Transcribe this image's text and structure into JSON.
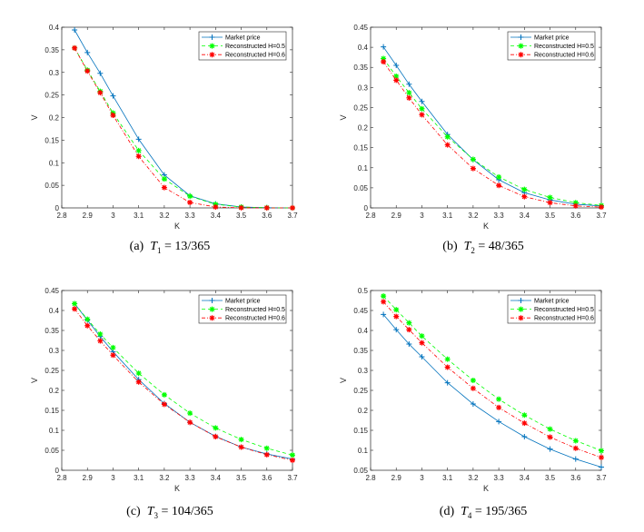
{
  "colors": {
    "market": "#0072BD",
    "h05": "#00FF00",
    "h06": "#FF0000",
    "axis": "#262626"
  },
  "chart_data": [
    {
      "type": "line",
      "panel": "a",
      "caption": {
        "label": "(a)",
        "var": "T",
        "sub": "1",
        "rest": "= 13/365"
      },
      "xlabel": "K",
      "ylabel": "V",
      "xlim": [
        2.8,
        3.7
      ],
      "ylim": [
        0,
        0.4
      ],
      "xticks": [
        "2.8",
        "2.9",
        "3",
        "3.1",
        "3.2",
        "3.3",
        "3.4",
        "3.5",
        "3.6",
        "3.7"
      ],
      "yticks": [
        "0",
        "0.05",
        "0.1",
        "0.15",
        "0.2",
        "0.25",
        "0.3",
        "0.35",
        "0.4"
      ],
      "legend_position": "top-right",
      "x": [
        2.85,
        2.9,
        2.95,
        3.0,
        3.1,
        3.2,
        3.3,
        3.4,
        3.5,
        3.6,
        3.7
      ],
      "series": [
        {
          "name": "Market price",
          "key": "market",
          "values": [
            0.394,
            0.344,
            0.298,
            0.248,
            0.152,
            0.073,
            0.027,
            0.009,
            0.002,
            0.0005,
            0
          ]
        },
        {
          "name": "Reconstructed H=0.5",
          "key": "h05",
          "values": [
            0.354,
            0.305,
            0.258,
            0.21,
            0.127,
            0.064,
            0.026,
            0.008,
            0.002,
            0.0005,
            0
          ]
        },
        {
          "name": "Reconstructed H=0.6",
          "key": "h06",
          "values": [
            0.354,
            0.303,
            0.255,
            0.205,
            0.114,
            0.045,
            0.012,
            0.002,
            0.0003,
            0,
            0
          ]
        }
      ]
    },
    {
      "type": "line",
      "panel": "b",
      "caption": {
        "label": "(b)",
        "var": "T",
        "sub": "2",
        "rest": "= 48/365"
      },
      "xlabel": "K",
      "ylabel": "V",
      "xlim": [
        2.8,
        3.7
      ],
      "ylim": [
        0,
        0.45
      ],
      "xticks": [
        "2.8",
        "2.9",
        "3",
        "3.1",
        "3.2",
        "3.3",
        "3.4",
        "3.5",
        "3.6",
        "3.7"
      ],
      "yticks": [
        "0",
        "0.05",
        "0.1",
        "0.15",
        "0.2",
        "0.25",
        "0.3",
        "0.35",
        "0.4",
        "0.45"
      ],
      "legend_position": "top-right",
      "x": [
        2.85,
        2.9,
        2.95,
        3.0,
        3.1,
        3.2,
        3.3,
        3.4,
        3.5,
        3.6,
        3.7
      ],
      "series": [
        {
          "name": "Market price",
          "key": "market",
          "values": [
            0.401,
            0.355,
            0.308,
            0.265,
            0.183,
            0.12,
            0.07,
            0.038,
            0.02,
            0.009,
            0.005
          ]
        },
        {
          "name": "Reconstructed H=0.5",
          "key": "h05",
          "values": [
            0.372,
            0.328,
            0.287,
            0.247,
            0.177,
            0.121,
            0.077,
            0.046,
            0.026,
            0.013,
            0.006
          ]
        },
        {
          "name": "Reconstructed H=0.6",
          "key": "h06",
          "values": [
            0.364,
            0.318,
            0.274,
            0.232,
            0.157,
            0.098,
            0.056,
            0.028,
            0.013,
            0.005,
            0.002
          ]
        }
      ]
    },
    {
      "type": "line",
      "panel": "c",
      "caption": {
        "label": "(c)",
        "var": "T",
        "sub": "3",
        "rest": "= 104/365"
      },
      "xlabel": "K",
      "ylabel": "V",
      "xlim": [
        2.8,
        3.7
      ],
      "ylim": [
        0,
        0.45
      ],
      "xticks": [
        "2.8",
        "2.9",
        "3",
        "3.1",
        "3.2",
        "3.3",
        "3.4",
        "3.5",
        "3.6",
        "3.7"
      ],
      "yticks": [
        "0",
        "0.05",
        "0.1",
        "0.15",
        "0.2",
        "0.25",
        "0.3",
        "0.35",
        "0.4",
        "0.45"
      ],
      "legend_position": "top-right",
      "x": [
        2.85,
        2.9,
        2.95,
        3.0,
        3.1,
        3.2,
        3.3,
        3.4,
        3.5,
        3.6,
        3.7
      ],
      "series": [
        {
          "name": "Market price",
          "key": "market",
          "values": [
            0.417,
            0.376,
            0.335,
            0.297,
            0.227,
            0.167,
            0.12,
            0.085,
            0.058,
            0.041,
            0.028
          ]
        },
        {
          "name": "Reconstructed H=0.5",
          "key": "h05",
          "values": [
            0.417,
            0.378,
            0.341,
            0.307,
            0.243,
            0.189,
            0.143,
            0.106,
            0.077,
            0.055,
            0.038
          ]
        },
        {
          "name": "Reconstructed H=0.6",
          "key": "h06",
          "values": [
            0.404,
            0.362,
            0.324,
            0.288,
            0.221,
            0.165,
            0.12,
            0.084,
            0.058,
            0.039,
            0.025
          ]
        }
      ]
    },
    {
      "type": "line",
      "panel": "d",
      "caption": {
        "label": "(d)",
        "var": "T",
        "sub": "4",
        "rest": "= 195/365"
      },
      "xlabel": "K",
      "ylabel": "V",
      "xlim": [
        2.8,
        3.7
      ],
      "ylim": [
        0.05,
        0.5
      ],
      "xticks": [
        "2.8",
        "2.9",
        "3",
        "3.1",
        "3.2",
        "3.3",
        "3.4",
        "3.5",
        "3.6",
        "3.7"
      ],
      "yticks": [
        "0.05",
        "0.1",
        "0.15",
        "0.2",
        "0.25",
        "0.3",
        "0.35",
        "0.4",
        "0.45",
        "0.5"
      ],
      "legend_position": "top-right",
      "x": [
        2.85,
        2.9,
        2.95,
        3.0,
        3.1,
        3.2,
        3.3,
        3.4,
        3.5,
        3.6,
        3.7
      ],
      "series": [
        {
          "name": "Market price",
          "key": "market",
          "values": [
            0.44,
            0.402,
            0.366,
            0.334,
            0.269,
            0.216,
            0.172,
            0.134,
            0.103,
            0.078,
            0.058
          ]
        },
        {
          "name": "Reconstructed H=0.5",
          "key": "h05",
          "values": [
            0.486,
            0.452,
            0.419,
            0.386,
            0.328,
            0.275,
            0.228,
            0.188,
            0.153,
            0.124,
            0.099
          ]
        },
        {
          "name": "Reconstructed H=0.6",
          "key": "h06",
          "values": [
            0.472,
            0.435,
            0.402,
            0.369,
            0.308,
            0.255,
            0.207,
            0.168,
            0.133,
            0.105,
            0.082
          ]
        }
      ]
    }
  ]
}
